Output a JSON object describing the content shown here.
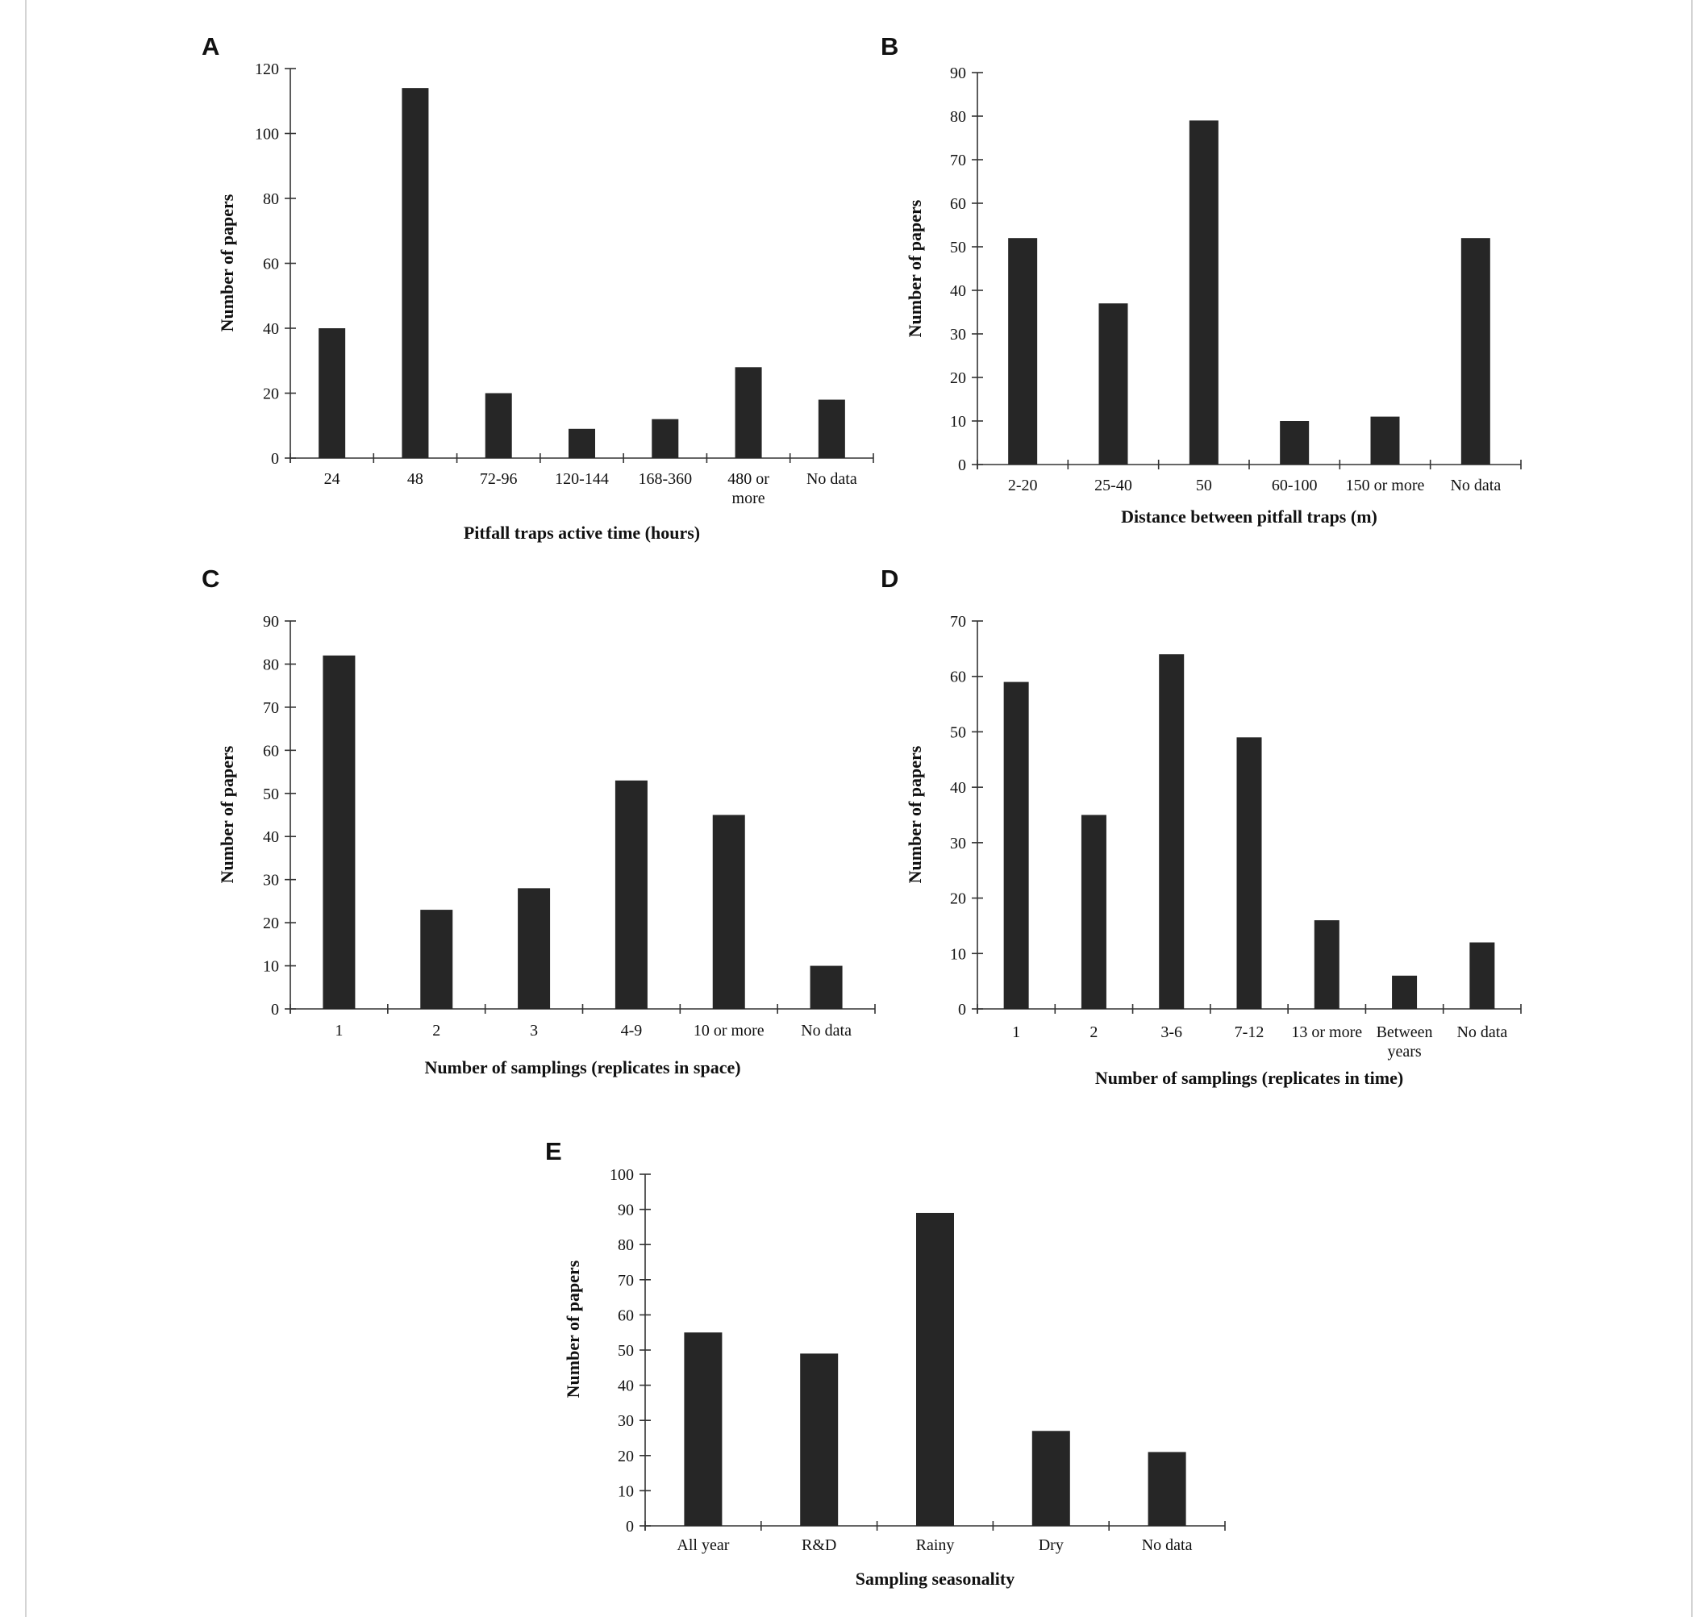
{
  "colors": {
    "bar": "#262626",
    "axis": "#333333",
    "background": "#ffffff"
  },
  "chart_data": [
    {
      "panel": "A",
      "type": "bar",
      "categories": [
        "24",
        "48",
        "72-96",
        "120-144",
        "168-360",
        "480 or more",
        "No data"
      ],
      "values": [
        40,
        114,
        20,
        9,
        12,
        28,
        18
      ],
      "xlabel": "Pitfall traps active time (hours)",
      "ylabel": "Number of papers",
      "ylim": [
        0,
        120
      ],
      "yticks": [
        0,
        20,
        40,
        60,
        80,
        100,
        120
      ],
      "grid": false
    },
    {
      "panel": "B",
      "type": "bar",
      "categories": [
        "2-20",
        "25-40",
        "50",
        "60-100",
        "150 or more",
        "No data"
      ],
      "values": [
        52,
        37,
        79,
        10,
        11,
        52
      ],
      "xlabel": "Distance between pitfall traps (m)",
      "ylabel": "Number of papers",
      "ylim": [
        0,
        90
      ],
      "yticks": [
        0,
        10,
        20,
        30,
        40,
        50,
        60,
        70,
        80,
        90
      ],
      "grid": false
    },
    {
      "panel": "C",
      "type": "bar",
      "categories": [
        "1",
        "2",
        "3",
        "4-9",
        "10 or more",
        "No data"
      ],
      "values": [
        82,
        23,
        28,
        53,
        45,
        10
      ],
      "xlabel": "Number of samplings (replicates in space)",
      "ylabel": "Number of papers",
      "ylim": [
        0,
        90
      ],
      "yticks": [
        0,
        10,
        20,
        30,
        40,
        50,
        60,
        70,
        80,
        90
      ],
      "grid": false
    },
    {
      "panel": "D",
      "type": "bar",
      "categories": [
        "1",
        "2",
        "3-6",
        "7-12",
        "13 or more",
        "Between years",
        "No data"
      ],
      "values": [
        59,
        35,
        64,
        49,
        16,
        6,
        12
      ],
      "xlabel": "Number of samplings (replicates in time)",
      "ylabel": "Number of papers",
      "ylim": [
        0,
        70
      ],
      "yticks": [
        0,
        10,
        20,
        30,
        40,
        50,
        60,
        70
      ],
      "grid": false
    },
    {
      "panel": "E",
      "type": "bar",
      "categories": [
        "All year",
        "R&D",
        "Rainy",
        "Dry",
        "No data"
      ],
      "values": [
        55,
        49,
        89,
        27,
        21
      ],
      "xlabel": "Sampling seasonality",
      "ylabel": "Number of papers",
      "ylim": [
        0,
        100
      ],
      "yticks": [
        0,
        10,
        20,
        30,
        40,
        50,
        60,
        70,
        80,
        90,
        100
      ],
      "grid": false
    }
  ]
}
